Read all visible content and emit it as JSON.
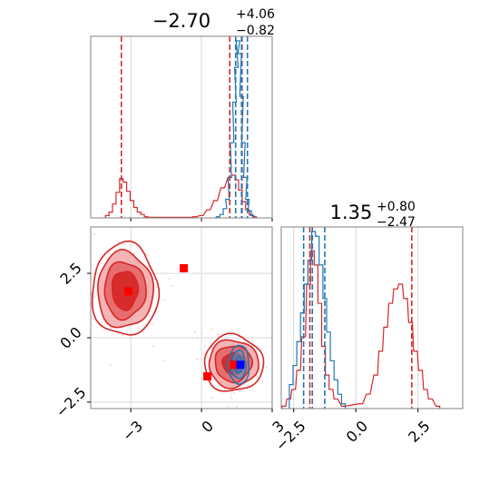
{
  "chart_data": [
    {
      "type": "histogram",
      "panel": "x-marginal",
      "title": {
        "median": "−2.70",
        "plus": "+4.06",
        "minus": "−0.82"
      },
      "xlim": [
        -4.7,
        3.0
      ],
      "series": [
        {
          "color": "#d62728",
          "bins": [
            [
              -4.0,
              0.2
            ],
            [
              -3.85,
              0.5
            ],
            [
              -3.7,
              1.2
            ],
            [
              -3.55,
              2.2
            ],
            [
              -3.4,
              3.4
            ],
            [
              -3.25,
              3.1
            ],
            [
              -3.1,
              2.3
            ],
            [
              -2.95,
              1.5
            ],
            [
              -2.8,
              0.9
            ],
            [
              -2.65,
              0.5
            ],
            [
              -2.5,
              0.3
            ],
            [
              -2.35,
              0.1
            ],
            [
              -2.2,
              0.05
            ],
            [
              -0.6,
              0.05
            ],
            [
              -0.45,
              0.05
            ],
            [
              -0.3,
              0.1
            ],
            [
              0.0,
              0.2
            ],
            [
              0.3,
              0.7
            ],
            [
              0.6,
              1.5
            ],
            [
              0.9,
              2.6
            ],
            [
              1.2,
              3.5
            ],
            [
              1.35,
              3.7
            ],
            [
              1.5,
              3.3
            ],
            [
              1.65,
              2.4
            ],
            [
              1.8,
              1.4
            ],
            [
              1.95,
              0.7
            ],
            [
              2.1,
              0.3
            ],
            [
              2.25,
              0.1
            ]
          ]
        },
        {
          "color": "#1f77b4",
          "bins": [
            [
              0.7,
              0.1
            ],
            [
              0.85,
              0.3
            ],
            [
              1.0,
              0.8
            ],
            [
              1.1,
              1.6
            ],
            [
              1.2,
              3.5
            ],
            [
              1.3,
              6.5
            ],
            [
              1.4,
              10.0
            ],
            [
              1.48,
              13.0
            ],
            [
              1.55,
              15.3
            ],
            [
              1.62,
              14.2
            ],
            [
              1.7,
              10.5
            ],
            [
              1.78,
              6.5
            ],
            [
              1.86,
              3.5
            ],
            [
              1.95,
              1.6
            ],
            [
              2.05,
              0.6
            ],
            [
              2.15,
              0.2
            ]
          ]
        }
      ],
      "lines": [
        {
          "x": -3.4,
          "color": "#d62728"
        },
        {
          "x": 1.2,
          "color": "#d62728"
        },
        {
          "x": 1.72,
          "color": "#d62728"
        },
        {
          "x": 1.45,
          "color": "#1f77b4"
        },
        {
          "x": 1.7,
          "color": "#1f77b4"
        },
        {
          "x": 1.95,
          "color": "#1f77b4"
        }
      ]
    },
    {
      "type": "histogram",
      "panel": "y-marginal",
      "title": {
        "median": "1.35",
        "plus": "+0.80",
        "minus": "−2.47"
      },
      "xlim": [
        -3.0,
        4.3
      ],
      "xticks": [
        "−2.5",
        "0.0",
        "2.5"
      ],
      "series": [
        {
          "color": "#d62728",
          "bins": [
            [
              -2.9,
              0.05
            ],
            [
              -2.7,
              0.2
            ],
            [
              -2.5,
              0.4
            ],
            [
              -2.3,
              0.8
            ],
            [
              -2.1,
              1.5
            ],
            [
              -1.9,
              2.6
            ],
            [
              -1.75,
              3.3
            ],
            [
              -1.6,
              3.0
            ],
            [
              -1.45,
              2.2
            ],
            [
              -1.3,
              1.3
            ],
            [
              -1.15,
              0.7
            ],
            [
              -1.0,
              0.4
            ],
            [
              -0.8,
              0.2
            ],
            [
              -0.5,
              0.05
            ],
            [
              0.2,
              0.1
            ],
            [
              0.5,
              0.3
            ],
            [
              0.8,
              0.7
            ],
            [
              1.0,
              1.2
            ],
            [
              1.2,
              1.7
            ],
            [
              1.4,
              2.2
            ],
            [
              1.6,
              2.5
            ],
            [
              1.8,
              2.6
            ],
            [
              2.0,
              2.3
            ],
            [
              2.2,
              1.8
            ],
            [
              2.4,
              1.2
            ],
            [
              2.6,
              0.8
            ],
            [
              2.8,
              0.4
            ],
            [
              3.0,
              0.2
            ],
            [
              3.3,
              0.05
            ]
          ]
        },
        {
          "color": "#1f77b4",
          "bins": [
            [
              -2.6,
              0.5
            ],
            [
              -2.45,
              0.9
            ],
            [
              -2.3,
              1.4
            ],
            [
              -2.15,
              2.0
            ],
            [
              -2.0,
              2.6
            ],
            [
              -1.85,
              3.1
            ],
            [
              -1.7,
              3.7
            ],
            [
              -1.55,
              3.6
            ],
            [
              -1.4,
              3.0
            ],
            [
              -1.25,
              2.3
            ],
            [
              -1.1,
              1.6
            ],
            [
              -0.95,
              1.0
            ],
            [
              -0.8,
              0.6
            ],
            [
              -0.65,
              0.3
            ],
            [
              -0.5,
              0.1
            ]
          ]
        }
      ],
      "lines": [
        {
          "x": 2.25,
          "color": "#d62728"
        },
        {
          "x": -1.85,
          "color": "#d62728"
        },
        {
          "x": -2.1,
          "color": "#1f77b4"
        },
        {
          "x": -1.75,
          "color": "#1f77b4"
        },
        {
          "x": -1.25,
          "color": "#1f77b4"
        }
      ]
    },
    {
      "type": "contour",
      "panel": "joint",
      "xlim": [
        -4.7,
        3.0
      ],
      "ylim": [
        -2.75,
        4.3
      ],
      "xticks": [
        "−3",
        "0",
        "3"
      ],
      "yticks": [
        "−2.5",
        "0.0",
        "2.5"
      ],
      "red_color": "#d62728",
      "blue_color": "#1f77b4",
      "red_clusters": [
        {
          "cx": -3.25,
          "cy": 1.85,
          "radii": [
            [
              1.4,
              1.8
            ],
            [
              1.18,
              1.48
            ],
            [
              0.88,
              1.1
            ],
            [
              0.55,
              0.75
            ]
          ]
        },
        {
          "cx": 1.35,
          "cy": -1.0,
          "radii": [
            [
              1.25,
              1.1
            ],
            [
              1.05,
              0.92
            ],
            [
              0.78,
              0.7
            ],
            [
              0.45,
              0.42
            ]
          ]
        }
      ],
      "blue_contours": {
        "cx": 1.58,
        "cy": -1.05,
        "radii": [
          [
            0.45,
            0.75
          ],
          [
            0.3,
            0.55
          ],
          [
            0.18,
            0.32
          ]
        ]
      },
      "markers": [
        {
          "x": -3.1,
          "y": 1.8,
          "color": "#ff0000"
        },
        {
          "x": -0.75,
          "y": 2.7,
          "color": "#ff0000"
        },
        {
          "x": 0.25,
          "y": -1.5,
          "color": "#ff0000"
        },
        {
          "x": 1.4,
          "y": -1.05,
          "color": "#ff0000"
        },
        {
          "x": 1.65,
          "y": -1.05,
          "color": "#0000ff"
        }
      ],
      "grid": true
    }
  ]
}
